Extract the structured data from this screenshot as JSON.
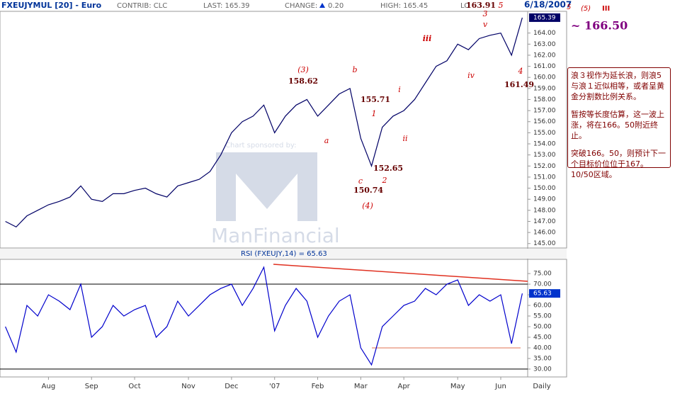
{
  "header": {
    "symbol": "FXEUJYMUL [20] - Euro",
    "contrib": "CONTRIB: CLC",
    "last": "LAST: 165.39",
    "change": "CHANGE:",
    "change_value": "0.20",
    "high": "HIGH: 165.45",
    "low": "LO",
    "date": "6/18/2007"
  },
  "chart_data": [
    {
      "type": "line",
      "color": "#000066",
      "last_label": "165.39",
      "categories": [
        null,
        null,
        null,
        null,
        "Aug",
        null,
        null,
        null,
        "Sep",
        null,
        null,
        null,
        "Oct",
        null,
        null,
        null,
        null,
        "Nov",
        null,
        null,
        null,
        "Dec",
        null,
        null,
        null,
        "'07",
        null,
        null,
        null,
        "Feb",
        null,
        null,
        null,
        "Mar",
        null,
        null,
        null,
        "Apr",
        null,
        null,
        null,
        null,
        "May",
        null,
        null,
        null,
        "Jun",
        null,
        null
      ],
      "values": [
        147.0,
        146.5,
        147.5,
        148.0,
        148.5,
        148.8,
        149.2,
        150.2,
        149.0,
        148.8,
        149.5,
        149.5,
        149.8,
        150.0,
        149.5,
        149.2,
        150.2,
        150.5,
        150.8,
        151.5,
        153.0,
        155.0,
        156.0,
        156.5,
        157.5,
        155.0,
        156.5,
        157.5,
        158.0,
        156.5,
        157.5,
        158.5,
        159.0,
        154.5,
        152.0,
        155.5,
        156.5,
        157.0,
        158.0,
        159.5,
        161.0,
        161.5,
        163.0,
        162.5,
        163.5,
        163.8,
        164.0,
        162.0,
        165.39
      ],
      "ylim": [
        144.6,
        165.96
      ],
      "yticks": [
        {
          "value": 145,
          "label": "145.00"
        },
        {
          "value": 146,
          "label": "146.00"
        },
        {
          "value": 147,
          "label": "147.00"
        },
        {
          "value": 148,
          "label": "148.00"
        },
        {
          "value": 149,
          "label": "149.00"
        },
        {
          "value": 150,
          "label": "150.00"
        },
        {
          "value": 151,
          "label": "151.00"
        },
        {
          "value": 152,
          "label": "152.00"
        },
        {
          "value": 153,
          "label": "153.00"
        },
        {
          "value": 154,
          "label": "154.00"
        },
        {
          "value": 155,
          "label": "155.00"
        },
        {
          "value": 156,
          "label": "156.00"
        },
        {
          "value": 157,
          "label": "157.00"
        },
        {
          "value": 158,
          "label": "158.00"
        },
        {
          "value": 159,
          "label": "159.00"
        },
        {
          "value": 160,
          "label": "160.00"
        },
        {
          "value": 161,
          "label": "161.00"
        },
        {
          "value": 162,
          "label": "162.00"
        },
        {
          "value": 163,
          "label": "163.00"
        },
        {
          "value": 164,
          "label": "164.00"
        }
      ],
      "period": "Daily"
    },
    {
      "type": "line",
      "title": "RSI (FXEUJY,14) = 65.63",
      "color": "#0000cc",
      "last_label": "65.63",
      "values": [
        50,
        38,
        60,
        55,
        65,
        62,
        58,
        70,
        45,
        50,
        60,
        55,
        58,
        60,
        45,
        50,
        62,
        55,
        60,
        65,
        68,
        70,
        60,
        68,
        78,
        48,
        60,
        68,
        62,
        45,
        55,
        62,
        65,
        40,
        32,
        50,
        55,
        60,
        62,
        68,
        65,
        70,
        72,
        60,
        65,
        62,
        65,
        42,
        65.63
      ],
      "ylim": [
        26.3,
        81.7
      ],
      "hlines": [
        70,
        30
      ],
      "yticks": [
        {
          "value": 30,
          "label": "30.00"
        },
        {
          "value": 35,
          "label": "35.00"
        },
        {
          "value": 40,
          "label": "40.00"
        },
        {
          "value": 45,
          "label": "45.00"
        },
        {
          "value": 50,
          "label": "50.00"
        },
        {
          "value": 55,
          "label": "55.00"
        },
        {
          "value": 60,
          "label": "60.00"
        },
        {
          "value": 65,
          "label": "65.00"
        },
        {
          "value": 70,
          "label": "70.00"
        },
        {
          "value": 75,
          "label": "75.00"
        }
      ]
    }
  ],
  "waves": [
    "(3)",
    "158.62",
    "b",
    "a",
    "155.71",
    "1",
    "i",
    "ii",
    "c",
    "150.74",
    "(4)",
    "152.65",
    "2",
    "iii",
    "163.91",
    "3",
    "v",
    "5",
    "iv",
    "4",
    "161.49"
  ],
  "watermark": {
    "sponsor": "Chart sponsored by:",
    "brand": "ManFinancial"
  },
  "target": {
    "w1": "5",
    "w2": "(5)",
    "w3": "III",
    "price": "~ 166.50"
  },
  "note": [
    "浪３视作为延长浪，则浪5与浪１近似相等，或者呈黄金分割数比例关系。",
    "暂按等长度估算，这一波上涨，将在166。50附近终止。",
    "突破166。50，则预计下一个目标价位位于167。10/50区域。"
  ]
}
